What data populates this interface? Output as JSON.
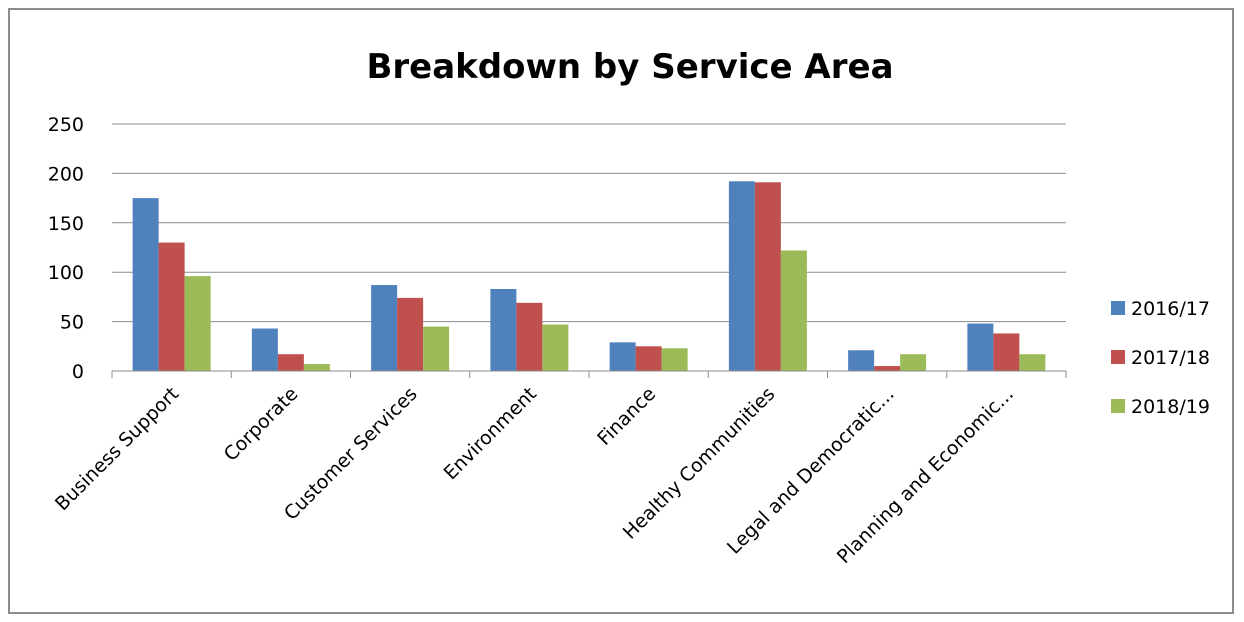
{
  "chart_data": {
    "type": "bar",
    "title": "Breakdown by Service Area",
    "categories": [
      "Business Support",
      "Corporate",
      "Customer Services",
      "Environment",
      "Finance",
      "Healthy Communities",
      "Legal and Democratic...",
      "Planning and Economic..."
    ],
    "series": [
      {
        "name": "2016/17",
        "color": "#4f81bd",
        "values": [
          175,
          43,
          87,
          83,
          29,
          192,
          21,
          48
        ]
      },
      {
        "name": "2017/18",
        "color": "#c0504d",
        "values": [
          130,
          17,
          74,
          69,
          25,
          191,
          5,
          38
        ]
      },
      {
        "name": "2018/19",
        "color": "#9bbb59",
        "values": [
          96,
          7,
          45,
          47,
          23,
          122,
          17,
          17
        ]
      }
    ],
    "yticks": [
      "0",
      "50",
      "100",
      "150",
      "200",
      "250"
    ],
    "ylim": [
      0,
      250
    ],
    "xlabel": "",
    "ylabel": "",
    "grid": true,
    "legend_position": "right"
  }
}
